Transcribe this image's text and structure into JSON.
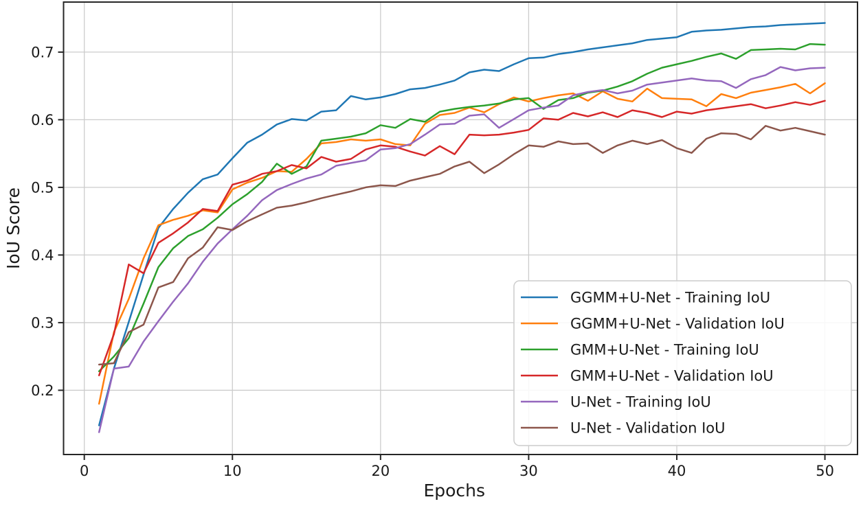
{
  "chart_data": {
    "type": "line",
    "title": "",
    "xlabel": "Epochs",
    "ylabel": "IoU Score",
    "xlim": [
      -1.4,
      52.2
    ],
    "ylim": [
      0.105,
      0.774
    ],
    "x_ticks": [
      0,
      10,
      20,
      30,
      40,
      50
    ],
    "y_ticks": [
      0.2,
      0.3,
      0.4,
      0.5,
      0.6,
      0.7
    ],
    "grid": true,
    "grid_color": "#cccccc",
    "spine_color": "#262626",
    "legend_position": "lower right",
    "x_start_epoch": 1,
    "series": [
      {
        "name": "GGMM+U-Net - Training IoU",
        "color": "#1f77b4",
        "values": [
          0.148,
          0.232,
          0.301,
          0.371,
          0.44,
          0.468,
          0.492,
          0.512,
          0.519,
          0.543,
          0.566,
          0.578,
          0.593,
          0.601,
          0.599,
          0.612,
          0.614,
          0.635,
          0.63,
          0.633,
          0.638,
          0.645,
          0.647,
          0.652,
          0.658,
          0.67,
          0.674,
          0.672,
          0.682,
          0.691,
          0.692,
          0.697,
          0.7,
          0.704,
          0.707,
          0.71,
          0.713,
          0.718,
          0.72,
          0.722,
          0.73,
          0.732,
          0.733,
          0.735,
          0.737,
          0.738,
          0.74,
          0.741,
          0.742,
          0.743
        ]
      },
      {
        "name": "GGMM+U-Net - Validation IoU",
        "color": "#ff7f0e",
        "values": [
          0.18,
          0.286,
          0.335,
          0.395,
          0.444,
          0.452,
          0.458,
          0.466,
          0.463,
          0.497,
          0.507,
          0.514,
          0.524,
          0.523,
          0.542,
          0.565,
          0.567,
          0.571,
          0.569,
          0.571,
          0.564,
          0.562,
          0.594,
          0.607,
          0.61,
          0.618,
          0.611,
          0.623,
          0.633,
          0.627,
          0.632,
          0.636,
          0.639,
          0.628,
          0.642,
          0.631,
          0.627,
          0.646,
          0.632,
          0.631,
          0.63,
          0.62,
          0.638,
          0.632,
          0.64,
          0.644,
          0.648,
          0.653,
          0.639,
          0.654
        ]
      },
      {
        "name": "GMM+U-Net - Training IoU",
        "color": "#2ca02c",
        "values": [
          0.228,
          0.25,
          0.277,
          0.328,
          0.382,
          0.41,
          0.428,
          0.438,
          0.455,
          0.475,
          0.49,
          0.508,
          0.535,
          0.52,
          0.531,
          0.569,
          0.572,
          0.575,
          0.58,
          0.592,
          0.588,
          0.601,
          0.597,
          0.612,
          0.616,
          0.619,
          0.621,
          0.624,
          0.63,
          0.632,
          0.616,
          0.629,
          0.632,
          0.64,
          0.643,
          0.649,
          0.657,
          0.668,
          0.677,
          0.682,
          0.687,
          0.693,
          0.698,
          0.69,
          0.703,
          0.704,
          0.705,
          0.704,
          0.712,
          0.711
        ]
      },
      {
        "name": "GMM+U-Net - Validation IoU",
        "color": "#d62728",
        "values": [
          0.222,
          0.283,
          0.386,
          0.373,
          0.418,
          0.432,
          0.448,
          0.468,
          0.465,
          0.504,
          0.51,
          0.52,
          0.524,
          0.533,
          0.528,
          0.545,
          0.538,
          0.542,
          0.556,
          0.562,
          0.56,
          0.553,
          0.547,
          0.561,
          0.549,
          0.578,
          0.577,
          0.578,
          0.581,
          0.585,
          0.602,
          0.6,
          0.61,
          0.605,
          0.611,
          0.604,
          0.614,
          0.61,
          0.604,
          0.612,
          0.609,
          0.614,
          0.617,
          0.62,
          0.623,
          0.617,
          0.621,
          0.626,
          0.622,
          0.628
        ]
      },
      {
        "name": "U-Net - Training IoU",
        "color": "#9467bd",
        "values": [
          0.138,
          0.232,
          0.235,
          0.272,
          0.302,
          0.331,
          0.358,
          0.39,
          0.417,
          0.438,
          0.458,
          0.481,
          0.496,
          0.505,
          0.513,
          0.519,
          0.532,
          0.536,
          0.54,
          0.556,
          0.558,
          0.564,
          0.578,
          0.593,
          0.594,
          0.606,
          0.608,
          0.588,
          0.601,
          0.614,
          0.618,
          0.621,
          0.636,
          0.641,
          0.644,
          0.639,
          0.643,
          0.652,
          0.655,
          0.658,
          0.661,
          0.658,
          0.657,
          0.647,
          0.66,
          0.666,
          0.678,
          0.673,
          0.676,
          0.677
        ]
      },
      {
        "name": "U-Net - Validation IoU",
        "color": "#8c564b",
        "values": [
          0.238,
          0.24,
          0.286,
          0.297,
          0.352,
          0.36,
          0.395,
          0.411,
          0.441,
          0.437,
          0.45,
          0.46,
          0.47,
          0.473,
          0.478,
          0.484,
          0.489,
          0.494,
          0.5,
          0.503,
          0.502,
          0.51,
          0.515,
          0.52,
          0.531,
          0.538,
          0.521,
          0.534,
          0.549,
          0.562,
          0.56,
          0.568,
          0.564,
          0.565,
          0.551,
          0.562,
          0.569,
          0.564,
          0.57,
          0.558,
          0.551,
          0.572,
          0.58,
          0.579,
          0.571,
          0.591,
          0.584,
          0.588,
          0.583,
          0.578
        ]
      }
    ]
  }
}
